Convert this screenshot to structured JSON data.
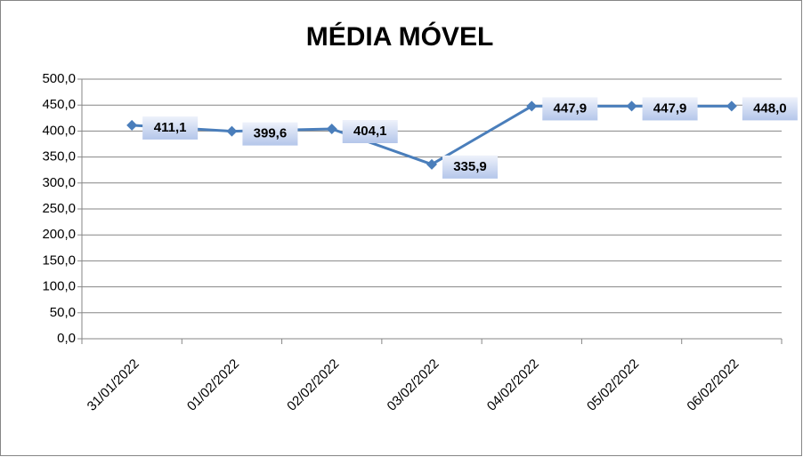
{
  "chart_data": {
    "type": "line",
    "title": "MÉDIA MÓVEL",
    "categories": [
      "31/01/2022",
      "01/02/2022",
      "02/02/2022",
      "03/02/2022",
      "04/02/2022",
      "05/02/2022",
      "06/02/2022"
    ],
    "series": [
      {
        "name": "MÉDIA MÓVEL",
        "color": "#4a7ebb",
        "values": [
          411.1,
          399.6,
          404.1,
          335.9,
          447.9,
          447.9,
          448.0
        ],
        "value_labels": [
          "411,1",
          "399,6",
          "404,1",
          "335,9",
          "447,9",
          "447,9",
          "448,0"
        ]
      }
    ],
    "ylim": [
      0,
      500
    ],
    "yticks": [
      {
        "value": 0,
        "label": "0,0"
      },
      {
        "value": 50,
        "label": "50,0"
      },
      {
        "value": 100,
        "label": "100,0"
      },
      {
        "value": 150,
        "label": "150,0"
      },
      {
        "value": 200,
        "label": "200,0"
      },
      {
        "value": 250,
        "label": "250,0"
      },
      {
        "value": 300,
        "label": "300,0"
      },
      {
        "value": 350,
        "label": "350,0"
      },
      {
        "value": 400,
        "label": "400,0"
      },
      {
        "value": 450,
        "label": "450,0"
      },
      {
        "value": 500,
        "label": "500,0"
      }
    ],
    "grid": true
  }
}
